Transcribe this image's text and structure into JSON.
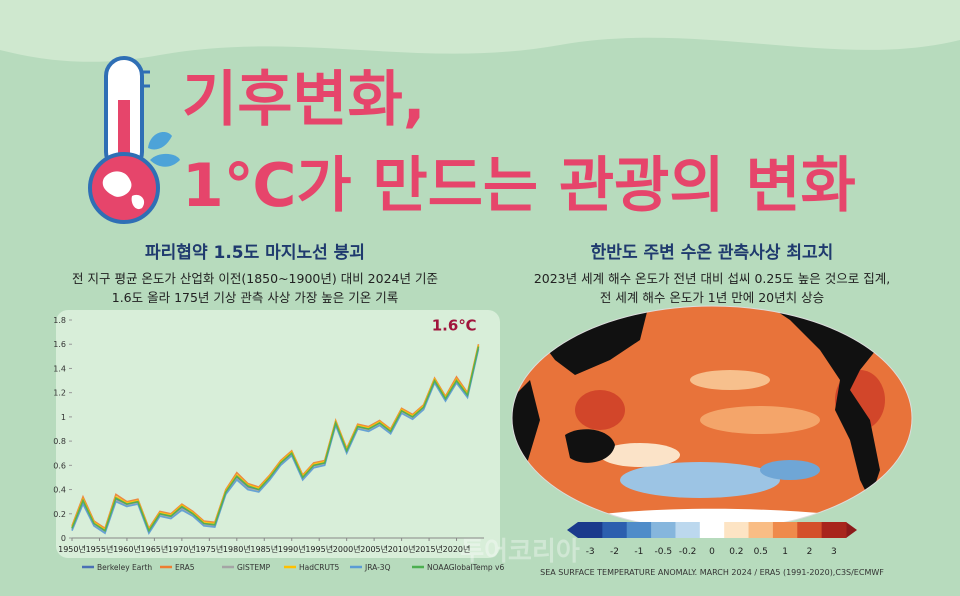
{
  "header": {
    "title_line1": "기후변화,",
    "title_line2": "1℃가 만드는 관광의 변화"
  },
  "left": {
    "heading": "파리협약 1.5도 마지노선 붕괴",
    "text_line1": "전 지구 평균 온도가 산업화 이전(1850~1900년) 대비 2024년 기준",
    "text_line2": "1.6도 올라 175년 기상 관측 사상 가장 높은 기온 기록"
  },
  "right": {
    "heading": "한반도 주변 수온 관측사상 최고치",
    "text_line1": "2023년 세계 해수 온도가 전년 대비 섭씨 0.25도 높은 것으로 집계,",
    "text_line2": "전 세계 해수 온도가 1년 만에 20년치 상승",
    "colorbar_ticks": [
      -3,
      -2,
      -1,
      -0.5,
      -0.2,
      0,
      0.2,
      0.5,
      1,
      2,
      3
    ],
    "caption": "SEA SURFACE TEMPERATURE ANOMALY. MARCH 2024 / ERA5 (1991-2020),C3S/ECMWF"
  },
  "watermark": "투어코리아",
  "chart_data": {
    "type": "line",
    "annotation": "1.6℃",
    "x": [
      1950,
      1952,
      1954,
      1956,
      1958,
      1960,
      1962,
      1964,
      1966,
      1968,
      1970,
      1972,
      1974,
      1976,
      1978,
      1980,
      1982,
      1984,
      1986,
      1988,
      1990,
      1992,
      1994,
      1996,
      1998,
      2000,
      2002,
      2004,
      2006,
      2008,
      2010,
      2012,
      2014,
      2016,
      2018,
      2020,
      2022,
      2024
    ],
    "xlim": [
      1950,
      2025
    ],
    "xticks": [
      {
        "value": 1950,
        "label": "1950년"
      },
      {
        "value": 1955,
        "label": "1955년"
      },
      {
        "value": 1960,
        "label": "1960년"
      },
      {
        "value": 1965,
        "label": "1965년"
      },
      {
        "value": 1970,
        "label": "1970년"
      },
      {
        "value": 1975,
        "label": "1975년"
      },
      {
        "value": 1980,
        "label": "1980년"
      },
      {
        "value": 1985,
        "label": "1985년"
      },
      {
        "value": 1990,
        "label": "1990년"
      },
      {
        "value": 1995,
        "label": "1995년"
      },
      {
        "value": 2000,
        "label": "2000년"
      },
      {
        "value": 2005,
        "label": "2005년"
      },
      {
        "value": 2010,
        "label": "2010년"
      },
      {
        "value": 2015,
        "label": "2015년"
      },
      {
        "value": 2020,
        "label": "2020년"
      }
    ],
    "ylim": [
      0,
      1.8
    ],
    "yticks": [
      0,
      0.2,
      0.4,
      0.6,
      0.8,
      1,
      1.2,
      1.4,
      1.6,
      1.8
    ],
    "series": [
      {
        "name": "Berkeley Earth",
        "color": "#4a6fb5",
        "values": [
          0.08,
          0.3,
          0.12,
          0.06,
          0.32,
          0.28,
          0.3,
          0.05,
          0.2,
          0.18,
          0.25,
          0.2,
          0.12,
          0.1,
          0.38,
          0.5,
          0.42,
          0.4,
          0.5,
          0.62,
          0.7,
          0.5,
          0.6,
          0.62,
          0.95,
          0.72,
          0.92,
          0.9,
          0.95,
          0.88,
          1.05,
          1.0,
          1.08,
          1.3,
          1.15,
          1.3,
          1.18,
          1.58
        ]
      },
      {
        "name": "ERA5",
        "color": "#ed7d31",
        "values": [
          0.1,
          0.34,
          0.14,
          0.08,
          0.36,
          0.3,
          0.32,
          0.08,
          0.22,
          0.2,
          0.28,
          0.22,
          0.14,
          0.13,
          0.4,
          0.54,
          0.45,
          0.42,
          0.52,
          0.64,
          0.72,
          0.52,
          0.62,
          0.64,
          0.97,
          0.74,
          0.94,
          0.92,
          0.97,
          0.9,
          1.07,
          1.02,
          1.1,
          1.32,
          1.17,
          1.33,
          1.2,
          1.6
        ]
      },
      {
        "name": "GISTEMP",
        "color": "#a5a5a5",
        "values": [
          0.07,
          0.29,
          0.11,
          0.05,
          0.31,
          0.27,
          0.29,
          0.05,
          0.19,
          0.17,
          0.24,
          0.19,
          0.11,
          0.1,
          0.37,
          0.49,
          0.41,
          0.39,
          0.49,
          0.61,
          0.69,
          0.49,
          0.59,
          0.61,
          0.94,
          0.71,
          0.91,
          0.89,
          0.94,
          0.87,
          1.04,
          0.99,
          1.07,
          1.29,
          1.14,
          1.29,
          1.17,
          1.57
        ]
      },
      {
        "name": "HadCRUT5",
        "color": "#ffc000",
        "values": [
          0.09,
          0.32,
          0.13,
          0.07,
          0.34,
          0.29,
          0.31,
          0.07,
          0.21,
          0.19,
          0.27,
          0.21,
          0.13,
          0.12,
          0.39,
          0.52,
          0.44,
          0.41,
          0.51,
          0.63,
          0.71,
          0.51,
          0.61,
          0.63,
          0.96,
          0.73,
          0.93,
          0.91,
          0.96,
          0.89,
          1.06,
          1.01,
          1.09,
          1.31,
          1.16,
          1.31,
          1.19,
          1.59
        ]
      },
      {
        "name": "JRA-3Q",
        "color": "#5b9bd5",
        "values": [
          0.06,
          0.28,
          0.1,
          0.04,
          0.3,
          0.26,
          0.28,
          0.04,
          0.18,
          0.16,
          0.23,
          0.18,
          0.1,
          0.09,
          0.36,
          0.48,
          0.4,
          0.38,
          0.48,
          0.6,
          0.68,
          0.48,
          0.58,
          0.6,
          0.93,
          0.7,
          0.9,
          0.88,
          0.93,
          0.86,
          1.03,
          0.98,
          1.06,
          1.28,
          1.13,
          1.28,
          1.16,
          1.56
        ]
      },
      {
        "name": "NOAAGlobalTemp v6",
        "color": "#4caf50",
        "values": [
          0.08,
          0.31,
          0.12,
          0.06,
          0.33,
          0.28,
          0.3,
          0.06,
          0.2,
          0.18,
          0.26,
          0.2,
          0.12,
          0.11,
          0.38,
          0.51,
          0.43,
          0.4,
          0.5,
          0.62,
          0.7,
          0.5,
          0.6,
          0.62,
          0.95,
          0.72,
          0.92,
          0.9,
          0.95,
          0.88,
          1.05,
          1.0,
          1.08,
          1.3,
          1.15,
          1.3,
          1.18,
          1.58
        ]
      }
    ]
  }
}
